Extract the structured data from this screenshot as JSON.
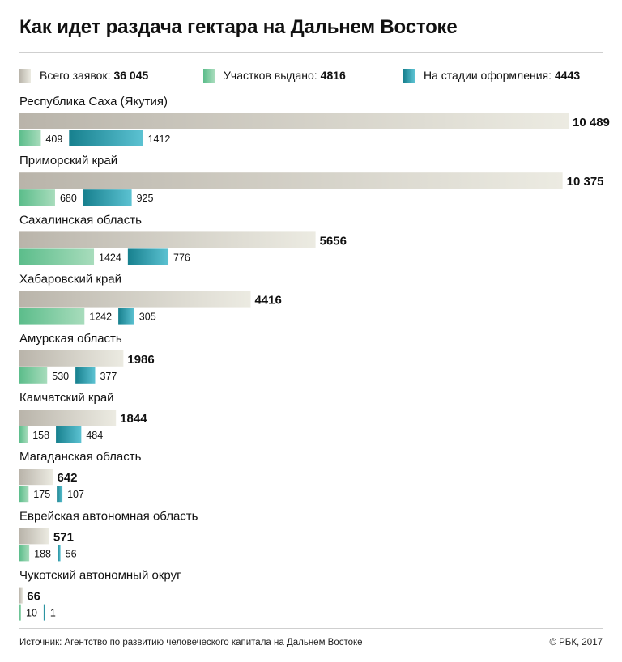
{
  "title": "Как идет раздача гектара на Дальнем Востоке",
  "legend": [
    {
      "label": "Всего заявок:",
      "value": "36 045"
    },
    {
      "label": "Участков выдано:",
      "value": "4816"
    },
    {
      "label": "На стадии оформления:",
      "value": "4443"
    }
  ],
  "colors": {
    "total_from": "#b9b4aa",
    "total_to": "#ecebe2",
    "issued_from": "#5cbd8b",
    "issued_to": "#a8dcbc",
    "process_from": "#17808e",
    "process_to": "#5cc2d2"
  },
  "chart_data": {
    "type": "bar",
    "categories": [
      "Республика Саха (Якутия)",
      "Приморский край",
      "Сахалинская область",
      "Хабаровский край",
      "Амурская область",
      "Камчатский край",
      "Магаданская область",
      "Еврейская автономная область",
      "Чукотский автономный округ"
    ],
    "series": [
      {
        "name": "Всего заявок",
        "values": [
          10489,
          10375,
          5656,
          4416,
          1986,
          1844,
          642,
          571,
          66
        ],
        "labels": [
          "10 489",
          "10 375",
          "5656",
          "4416",
          "1986",
          "1844",
          "642",
          "571",
          "66"
        ]
      },
      {
        "name": "Участков выдано",
        "values": [
          409,
          680,
          1424,
          1242,
          530,
          158,
          175,
          188,
          10
        ],
        "labels": [
          "409",
          "680",
          "1424",
          "1242",
          "530",
          "158",
          "175",
          "188",
          "10"
        ]
      },
      {
        "name": "На стадии оформления",
        "values": [
          1412,
          925,
          776,
          305,
          377,
          484,
          107,
          56,
          1
        ],
        "labels": [
          "1412",
          "925",
          "776",
          "305",
          "377",
          "484",
          "107",
          "56",
          "1"
        ]
      }
    ],
    "xlim": [
      0,
      10489
    ],
    "grid": false,
    "legend_position": "top"
  },
  "footer": {
    "source": "Источник: Агентство по развитию человеческого капитала на Дальнем Востоке",
    "copyright": "© РБК, 2017"
  }
}
